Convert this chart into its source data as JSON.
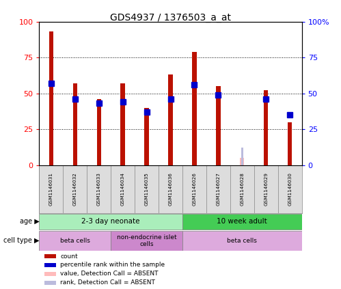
{
  "title": "GDS4937 / 1376503_a_at",
  "samples": [
    "GSM1146031",
    "GSM1146032",
    "GSM1146033",
    "GSM1146034",
    "GSM1146035",
    "GSM1146036",
    "GSM1146026",
    "GSM1146027",
    "GSM1146028",
    "GSM1146029",
    "GSM1146030"
  ],
  "red_values": [
    93,
    57,
    46,
    57,
    40,
    63,
    79,
    55,
    0,
    52,
    30
  ],
  "blue_values": [
    57,
    46,
    43,
    44,
    37,
    46,
    56,
    49,
    0,
    46,
    35
  ],
  "absent_red": [
    0,
    0,
    0,
    0,
    0,
    0,
    0,
    0,
    5,
    0,
    0
  ],
  "absent_blue": [
    0,
    0,
    0,
    0,
    0,
    0,
    0,
    0,
    12,
    0,
    0
  ],
  "ylim": [
    0,
    100
  ],
  "yticks": [
    0,
    25,
    50,
    75,
    100
  ],
  "yticklabels_left": [
    "0",
    "25",
    "50",
    "75",
    "100"
  ],
  "yticklabels_right": [
    "0",
    "25",
    "50",
    "75",
    "100%"
  ],
  "red_color": "#bb1100",
  "blue_color": "#0000cc",
  "absent_red_color": "#ffbbbb",
  "absent_blue_color": "#bbbbdd",
  "bar_width": 0.18,
  "blue_marker_size": 6,
  "age_groups": [
    {
      "label": "2-3 day neonate",
      "start": 0,
      "end": 5,
      "color": "#aaeebb"
    },
    {
      "label": "10 week adult",
      "start": 6,
      "end": 10,
      "color": "#44cc55"
    }
  ],
  "cell_type_groups": [
    {
      "label": "beta cells",
      "start": 0,
      "end": 2,
      "color": "#ddaadd"
    },
    {
      "label": "non-endocrine islet\ncells",
      "start": 3,
      "end": 5,
      "color": "#cc88cc"
    },
    {
      "label": "beta cells",
      "start": 6,
      "end": 10,
      "color": "#ddaadd"
    }
  ],
  "age_label": "age",
  "cell_type_label": "cell type",
  "legend_items": [
    {
      "label": "count",
      "color": "#bb1100",
      "marker": "s"
    },
    {
      "label": "percentile rank within the sample",
      "color": "#0000cc",
      "marker": "s"
    },
    {
      "label": "value, Detection Call = ABSENT",
      "color": "#ffbbbb",
      "marker": "s"
    },
    {
      "label": "rank, Detection Call = ABSENT",
      "color": "#bbbbdd",
      "marker": "s"
    }
  ],
  "bg_color": "#dddddd",
  "label_row_color": "#cccccc"
}
